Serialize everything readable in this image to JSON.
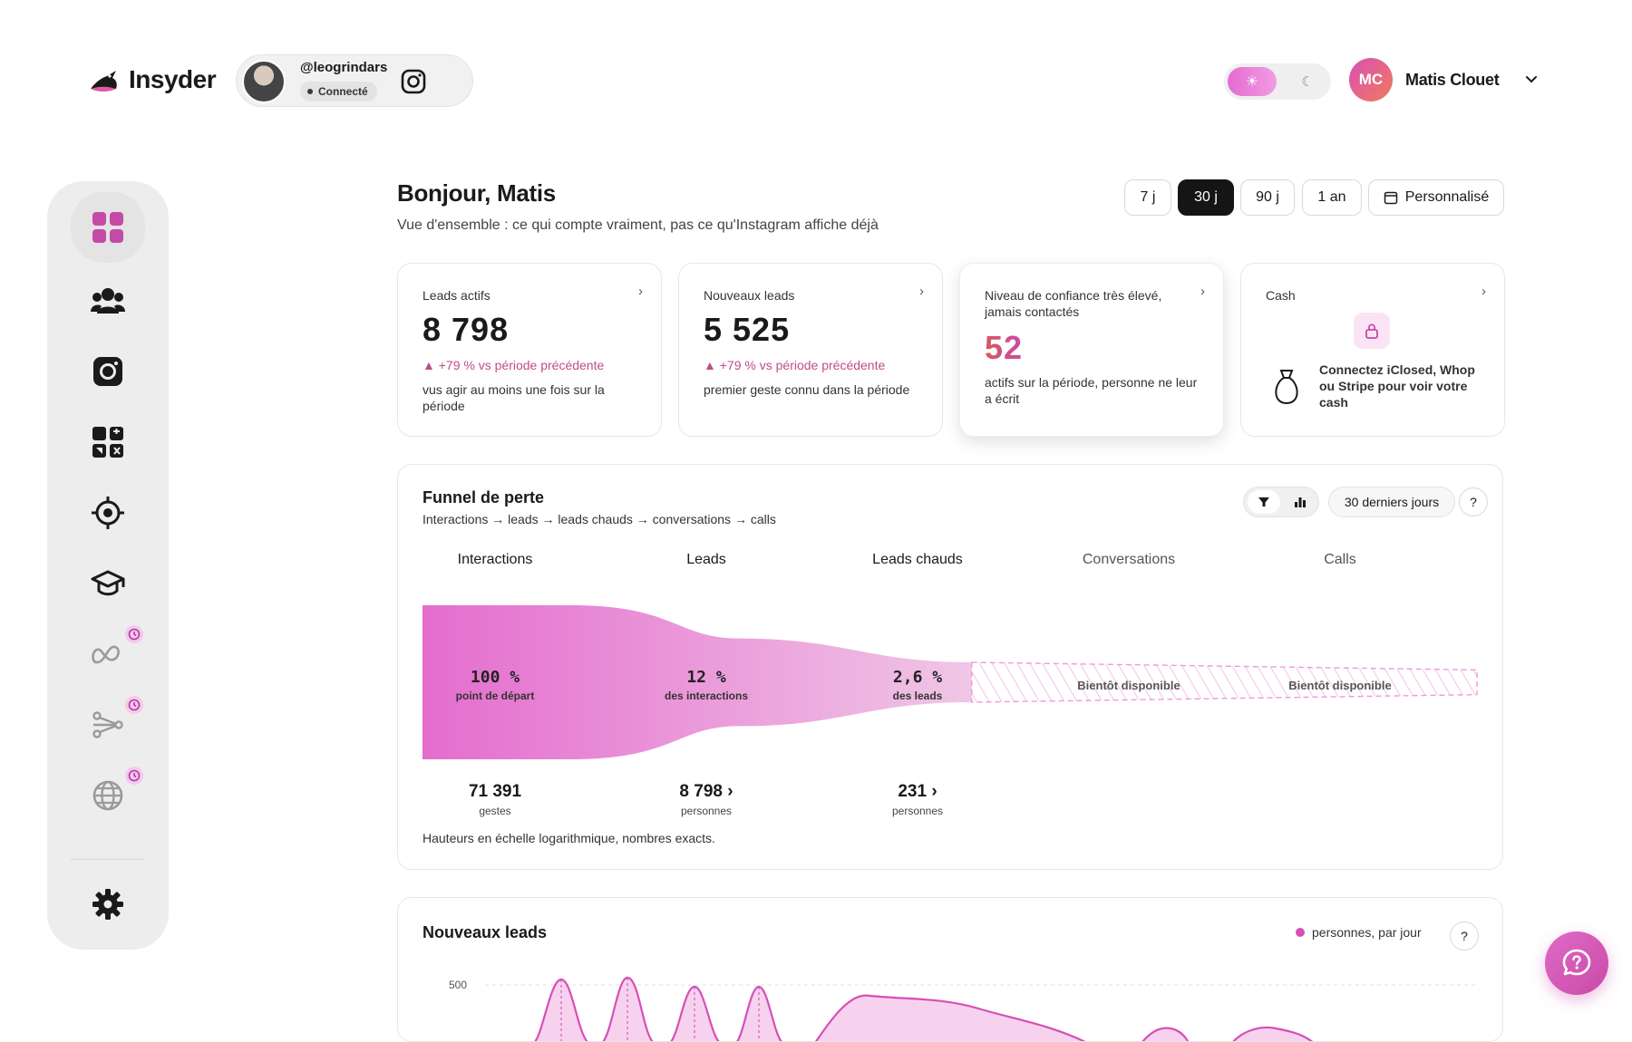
{
  "brand": {
    "name": "Insyder"
  },
  "account": {
    "handle": "@leogrindars",
    "status": "Connecté",
    "network_icon": "instagram-icon"
  },
  "theme": {
    "light_icon": "sun-icon",
    "dark_icon": "moon-icon",
    "active": "light"
  },
  "user": {
    "initials": "MC",
    "name": "Matis Clouet"
  },
  "sidebar": {
    "items": [
      {
        "icon": "dashboard-grid-icon",
        "active": true
      },
      {
        "icon": "users-icon"
      },
      {
        "icon": "instagram-icon"
      },
      {
        "icon": "apps-grid-icon"
      },
      {
        "icon": "target-icon"
      },
      {
        "icon": "graduation-cap-icon"
      },
      {
        "icon": "meta-icon",
        "badge": "clock-icon"
      },
      {
        "icon": "workflow-icon",
        "badge": "clock-icon"
      },
      {
        "icon": "globe-icon",
        "badge": "clock-icon"
      },
      {
        "icon": "settings-gear-icon"
      }
    ]
  },
  "header": {
    "greeting": "Bonjour, Matis",
    "subtitle": "Vue d'ensemble : ce qui compte vraiment, pas ce qu'Instagram affiche déjà",
    "ranges": [
      "7 j",
      "30 j",
      "90 j",
      "1 an"
    ],
    "selected_range": "30 j",
    "custom_label": "Personnalisé"
  },
  "cards": [
    {
      "label": "Leads actifs",
      "value": "8 798",
      "delta": "+79 % vs période précédente",
      "desc": "vus agir au moins une fois sur la période"
    },
    {
      "label": "Nouveaux leads",
      "value": "5 525",
      "delta": "+79 % vs période précédente",
      "desc": "premier geste connu dans la période"
    },
    {
      "label": "Niveau de confiance très élevé, jamais contactés",
      "value": "52",
      "desc": "actifs sur la période, personne ne leur a écrit"
    },
    {
      "label": "Cash",
      "text": "Connectez iClosed, Whop ou Stripe pour voir votre cash"
    }
  ],
  "funnel": {
    "title": "Funnel de perte",
    "subtitle": "Interactions → leads → leads chauds → conversations → calls",
    "period": "30 derniers jours",
    "help": "?",
    "stages": [
      {
        "name": "Interactions",
        "pct": "100 %",
        "pct_label": "point de départ",
        "count": "71 391",
        "unit": "gestes",
        "fraction": 1.0
      },
      {
        "name": "Leads",
        "pct": "12 %",
        "pct_label": "des interactions",
        "count": "8 798",
        "unit": "personnes",
        "fraction": 0.12
      },
      {
        "name": "Leads chauds",
        "pct": "2,6 %",
        "pct_label": "des leads",
        "count": "231",
        "unit": "personnes",
        "fraction": 0.026
      },
      {
        "name": "Conversations",
        "soon": "Bientôt disponible"
      },
      {
        "name": "Calls",
        "soon": "Bientôt disponible"
      }
    ],
    "footnote": "Hauteurs en échelle logarithmique, nombres exacts.",
    "colors": {
      "start": "#e46dce",
      "end": "#f0c6e6"
    }
  },
  "new_leads": {
    "title": "Nouveaux leads",
    "legend": "personnes, par jour",
    "help": "?",
    "y_tick": "500"
  },
  "chat": {
    "icon": "chat-help-icon"
  }
}
